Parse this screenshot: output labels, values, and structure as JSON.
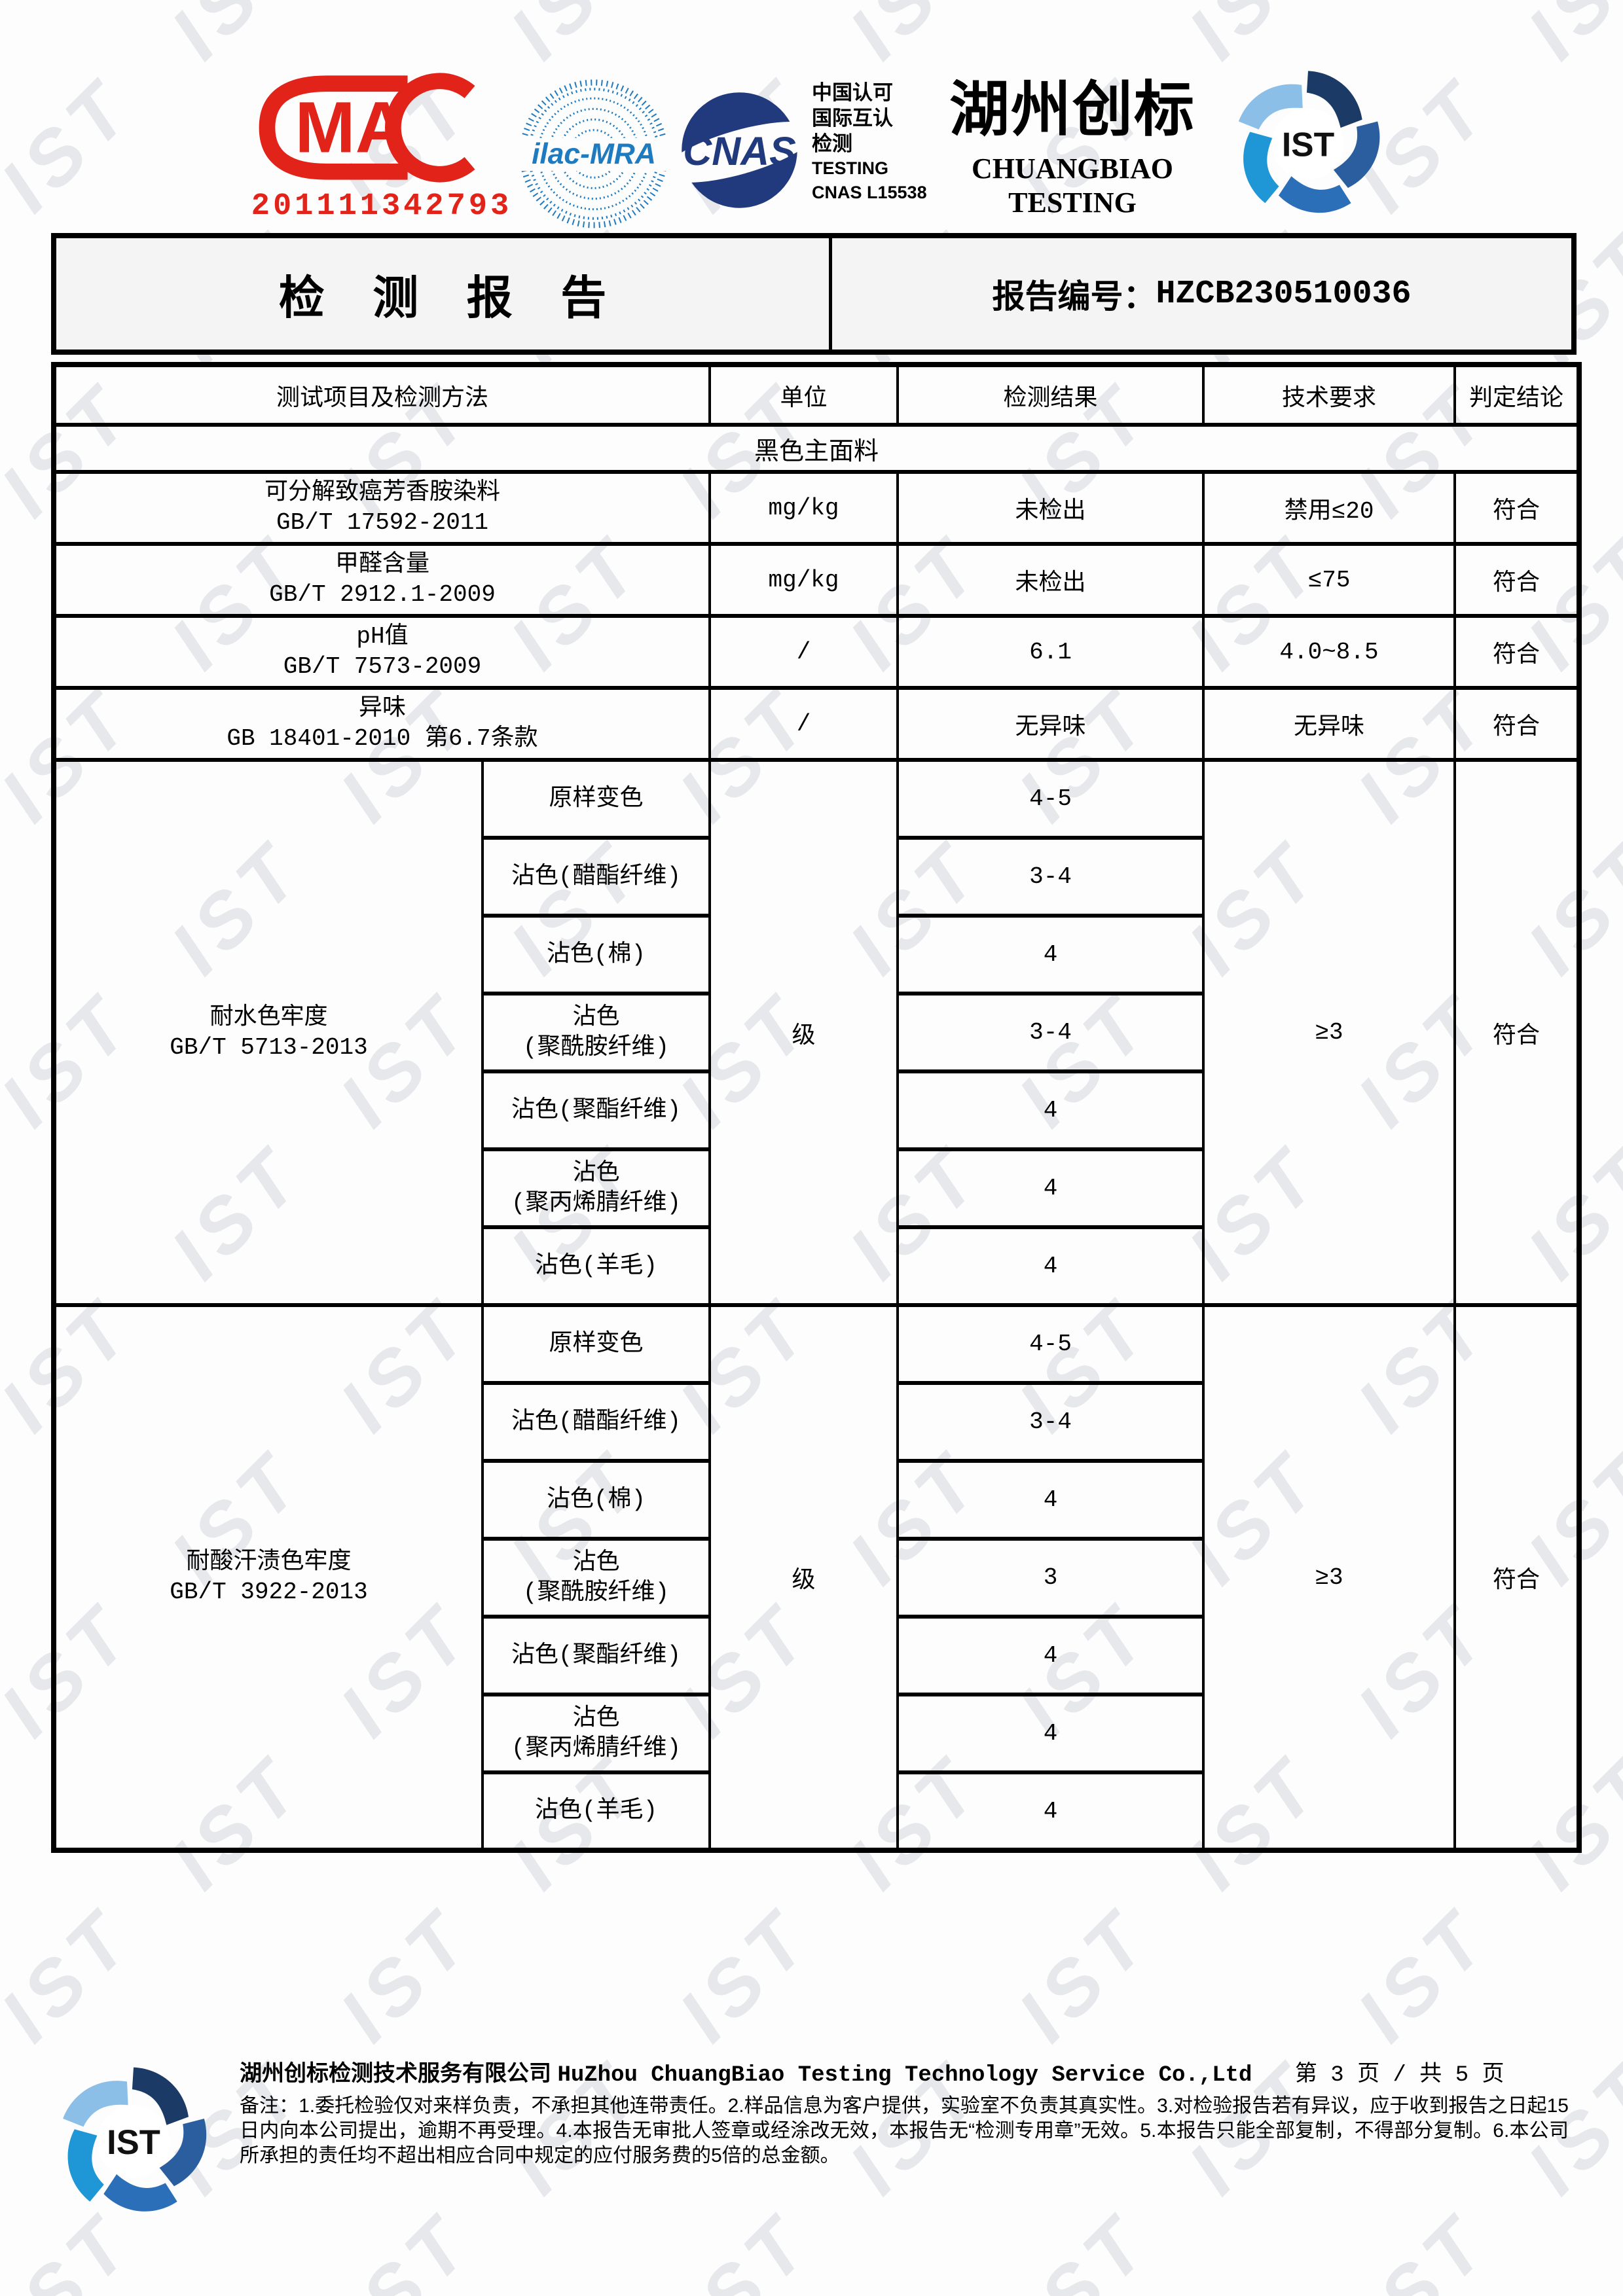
{
  "watermark": {
    "text": "IST"
  },
  "header": {
    "cma": {
      "text": "MA",
      "number": "201111342793"
    },
    "ilac_mra": {
      "text": "ilac-MRA"
    },
    "cnas": {
      "text": "CNAS"
    },
    "accreditation": {
      "lines": [
        "中国认可",
        "国际互认",
        "检测",
        "TESTING",
        "CNAS L15538"
      ]
    },
    "brand": {
      "cn": "湖州创标",
      "en_line1": "CHUANGBIAO",
      "en_line2": "TESTING"
    },
    "ist": {
      "text": "IST"
    }
  },
  "title_bar": {
    "report_title": "检 测 报 告",
    "report_no_label": "报告编号：",
    "report_no": "HZCB230510036"
  },
  "table": {
    "columns": [
      "测试项目及检测方法",
      "单位",
      "检测结果",
      "技术要求",
      "判定结论"
    ],
    "section_label": "黑色主面料",
    "simple_rows": [
      {
        "name": "可分解致癌芳香胺染料",
        "standard": "GB/T 17592-2011",
        "unit": "mg/kg",
        "result": "未检出",
        "requirement": "禁用≤20",
        "conclusion": "符合"
      },
      {
        "name": "甲醛含量",
        "standard": "GB/T 2912.1-2009",
        "unit": "mg/kg",
        "result": "未检出",
        "requirement": "≤75",
        "conclusion": "符合"
      },
      {
        "name": "pH值",
        "standard": "GB/T 7573-2009",
        "unit": "/",
        "result": "6.1",
        "requirement": "4.0~8.5",
        "conclusion": "符合"
      },
      {
        "name": "异味",
        "standard": "GB 18401-2010 第6.7条款",
        "unit": "/",
        "result": "无异味",
        "requirement": "无异味",
        "conclusion": "符合"
      }
    ],
    "fastness_sections": [
      {
        "name": "耐水色牢度",
        "standard": "GB/T 5713-2013",
        "unit": "级",
        "requirement": "≥3",
        "conclusion": "符合",
        "sub_rows": [
          {
            "label": "原样变色",
            "result": "4-5"
          },
          {
            "label": "沾色(醋酯纤维)",
            "result": "3-4"
          },
          {
            "label": "沾色(棉)",
            "result": "4"
          },
          {
            "label": "沾色\n(聚酰胺纤维)",
            "result": "3-4"
          },
          {
            "label": "沾色(聚酯纤维)",
            "result": "4"
          },
          {
            "label": "沾色\n(聚丙烯腈纤维)",
            "result": "4"
          },
          {
            "label": "沾色(羊毛)",
            "result": "4"
          }
        ]
      },
      {
        "name": "耐酸汗渍色牢度",
        "standard": "GB/T 3922-2013",
        "unit": "级",
        "requirement": "≥3",
        "conclusion": "符合",
        "sub_rows": [
          {
            "label": "原样变色",
            "result": "4-5"
          },
          {
            "label": "沾色(醋酯纤维)",
            "result": "3-4"
          },
          {
            "label": "沾色(棉)",
            "result": "4"
          },
          {
            "label": "沾色\n(聚酰胺纤维)",
            "result": "3"
          },
          {
            "label": "沾色(聚酯纤维)",
            "result": "4"
          },
          {
            "label": "沾色\n(聚丙烯腈纤维)",
            "result": "4"
          },
          {
            "label": "沾色(羊毛)",
            "result": "4"
          }
        ]
      }
    ]
  },
  "footer": {
    "company_cn": "湖州创标检测技术服务有限公司",
    "company_en": "HuZhou ChuangBiao Testing Technology Service Co.,Ltd",
    "page_info": "第 3 页 / 共 5 页",
    "notes": "备注：1.委托检验仅对来样负责，不承担其他连带责任。2.样品信息为客户提供，实验室不负责其真实性。3.对检验报告若有异议，应于收到报告之日起15日内向本公司提出，逾期不再受理。4.本报告无审批人签章或经涂改无效，本报告无“检测专用章”无效。5.本报告只能全部复制，不得部分复制。6.本公司所承担的责任均不超出相应合同中规定的应付服务费的5倍的总金额。"
  },
  "colors": {
    "cma_red": "#e2231a",
    "ilac_blue": "#1f7bbf",
    "cnas_navy": "#203a7d",
    "ist_blues": [
      "#1c3a66",
      "#2a5e9e",
      "#2b6fb8",
      "#1f96d6",
      "#8bbfe8"
    ],
    "watermark_gray": "#e6e8eb",
    "title_bar_bg": "#f4f4f4"
  }
}
